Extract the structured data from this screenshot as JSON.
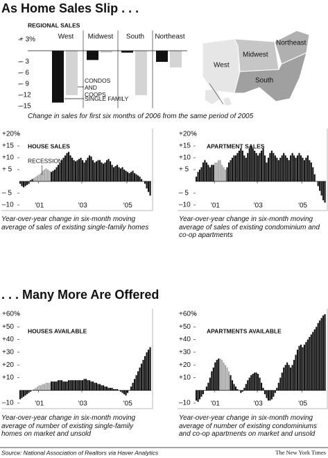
{
  "headline": "As Home Sales Slip . . .",
  "headline2": ". . . Many More Are Offered",
  "source": "Source: National Association of Realtors via Haver Analytics",
  "credit": "The New York Times",
  "chart_data": [
    {
      "type": "grouped_bar",
      "title": "REGIONAL SALES",
      "caption": "Change in sales for first six months of 2006 from the same period of 2005",
      "categories": [
        "West",
        "Midwest",
        "South",
        "Northeast"
      ],
      "series": [
        {
          "name": "SINGLE FAMILY",
          "color": "#111111",
          "values": [
            -14,
            -2.5,
            -0.5,
            -3
          ]
        },
        {
          "name": "CONDOS AND COOPS",
          "color": "#d4d4d4",
          "values": [
            -12,
            -0.5,
            -12,
            -4.5
          ]
        }
      ],
      "ylim": [
        -15.5,
        4
      ],
      "yticks": [
        {
          "value": 3,
          "label": "+ 3%"
        },
        {
          "value": -3,
          "label": "– 3"
        },
        {
          "value": -6,
          "label": "– 6"
        },
        {
          "value": -9,
          "label": "– 9"
        },
        {
          "value": -12,
          "label": "–12"
        },
        {
          "value": -15,
          "label": "–15"
        }
      ]
    },
    {
      "type": "bar",
      "title": "HOUSE SALES",
      "caption": "Year-over-year change in six-month moving average of sales of existing single-family homes",
      "color": "#111111",
      "highlight": {
        "label": "RECESSION",
        "from": 8,
        "to": 17,
        "color": "#aaaaaa"
      },
      "categories": [
        null,
        null,
        null,
        null,
        null,
        null,
        null,
        null,
        null,
        null,
        null,
        "'01",
        null,
        null,
        null,
        null,
        null,
        null,
        null,
        null,
        null,
        null,
        null,
        null,
        null,
        null,
        null,
        null,
        null,
        null,
        null,
        null,
        null,
        null,
        null,
        null,
        "'03",
        null,
        null,
        null,
        null,
        null,
        null,
        null,
        null,
        null,
        null,
        null,
        null,
        null,
        null,
        null,
        null,
        null,
        null,
        null,
        null,
        null,
        null,
        null,
        null,
        null,
        "'05",
        null,
        null,
        null,
        null,
        null,
        null,
        null,
        null,
        null,
        null,
        null,
        null,
        null
      ],
      "values": [
        -1,
        -2,
        -2.5,
        -2,
        -1.5,
        -1,
        0.5,
        1,
        1.5,
        2,
        2.5,
        3,
        3.5,
        4.5,
        5,
        5.5,
        5,
        4.5,
        4,
        4.5,
        5,
        6,
        7,
        8,
        9,
        10,
        11,
        12,
        12.5,
        11,
        10,
        9,
        8.5,
        9,
        9.5,
        10,
        9,
        8,
        9,
        10,
        11,
        10.5,
        9,
        8,
        8.5,
        9,
        9,
        8,
        7.5,
        8,
        9,
        9.5,
        8.5,
        7,
        6,
        6.5,
        7,
        6,
        5.5,
        6,
        5,
        4.5,
        4,
        3.5,
        4,
        4.5,
        3.5,
        3,
        2.5,
        2,
        1,
        0,
        -1,
        -3,
        -4.5,
        -6
      ],
      "ylim": [
        -10,
        20
      ],
      "yticks": [
        {
          "value": 20,
          "label": "+20%"
        },
        {
          "value": 15,
          "label": "+15"
        },
        {
          "value": 10,
          "label": "+10"
        },
        {
          "value": 5,
          "label": "+ 5"
        },
        {
          "value": -5,
          "label": "– 5"
        },
        {
          "value": -10,
          "label": "–10"
        }
      ]
    },
    {
      "type": "bar",
      "title": "APARTMENT SALES",
      "caption": "Year-over-year change in six-month moving average of sales of existing condominium and co-op apartments",
      "color": "#111111",
      "highlight": {
        "from": 11,
        "to": 17,
        "color": "#aaaaaa"
      },
      "categories": [
        null,
        null,
        null,
        null,
        null,
        null,
        null,
        null,
        null,
        null,
        null,
        "'01",
        null,
        null,
        null,
        null,
        null,
        null,
        null,
        null,
        null,
        null,
        null,
        null,
        null,
        null,
        null,
        null,
        null,
        null,
        null,
        null,
        null,
        null,
        null,
        null,
        "'03",
        null,
        null,
        null,
        null,
        null,
        null,
        null,
        null,
        null,
        null,
        null,
        null,
        null,
        null,
        null,
        null,
        null,
        null,
        null,
        null,
        null,
        null,
        null,
        null,
        null,
        "'05",
        null,
        null,
        null,
        null,
        null,
        null,
        null,
        null,
        null,
        null,
        null,
        null,
        null
      ],
      "values": [
        2,
        4,
        5,
        6,
        8,
        9,
        8,
        7,
        6,
        7,
        7,
        8,
        8,
        9,
        9,
        7,
        6,
        5,
        6,
        8,
        9,
        10,
        11,
        11,
        12,
        13,
        14,
        13,
        11,
        10,
        12,
        14,
        15,
        14,
        13,
        12,
        11,
        12,
        13,
        14,
        11,
        8,
        10,
        12,
        13,
        12,
        11,
        10,
        9,
        10,
        11,
        12,
        11,
        10,
        9,
        11,
        12,
        11,
        10,
        11,
        12,
        11,
        10,
        9,
        10,
        11,
        9,
        8,
        6,
        3,
        0,
        -2,
        -4,
        -6,
        -8,
        -9
      ],
      "ylim": [
        -10,
        20
      ],
      "yticks": [
        {
          "value": 20,
          "label": "+20%"
        },
        {
          "value": 15,
          "label": "+15"
        },
        {
          "value": 10,
          "label": "+10"
        },
        {
          "value": 5,
          "label": "+ 5"
        },
        {
          "value": -5,
          "label": "– 5"
        },
        {
          "value": -10,
          "label": "–10"
        }
      ]
    },
    {
      "type": "bar",
      "title": "HOUSES AVAILABLE",
      "caption": "Year-over-year change in six-month moving average of number of existing single-family homes on market and unsold",
      "color": "#111111",
      "highlight": {
        "from": 8,
        "to": 17,
        "color": "#aaaaaa"
      },
      "categories": [
        null,
        null,
        null,
        null,
        null,
        null,
        null,
        null,
        null,
        null,
        null,
        "'01",
        null,
        null,
        null,
        null,
        null,
        null,
        null,
        null,
        null,
        null,
        null,
        null,
        null,
        null,
        null,
        null,
        null,
        null,
        null,
        null,
        null,
        null,
        null,
        null,
        "'03",
        null,
        null,
        null,
        null,
        null,
        null,
        null,
        null,
        null,
        null,
        null,
        null,
        null,
        null,
        null,
        null,
        null,
        null,
        null,
        null,
        null,
        null,
        null,
        null,
        null,
        "'05",
        null,
        null,
        null,
        null,
        null,
        null,
        null,
        null,
        null,
        null,
        null,
        null,
        null
      ],
      "values": [
        -7,
        -6,
        -5,
        -4,
        -3,
        -2,
        -1,
        0,
        1,
        2,
        3,
        4,
        4,
        5,
        5,
        6,
        6,
        6,
        7,
        7,
        7,
        7,
        8,
        8,
        8,
        7,
        7,
        7,
        8,
        8,
        8,
        8,
        8,
        8,
        8,
        8,
        8,
        9,
        9,
        8,
        8,
        7,
        7,
        6,
        6,
        5,
        5,
        4,
        4,
        3,
        3,
        2,
        2,
        2,
        1,
        1,
        1,
        0,
        -1,
        -2,
        -3,
        -4,
        -2,
        0,
        3,
        6,
        9,
        12,
        15,
        18,
        21,
        24,
        27,
        30,
        32,
        34
      ],
      "ylim": [
        -10,
        60
      ],
      "yticks": [
        {
          "value": 60,
          "label": "+60%"
        },
        {
          "value": 50,
          "label": "+50"
        },
        {
          "value": 40,
          "label": "+40"
        },
        {
          "value": 30,
          "label": "+30"
        },
        {
          "value": 20,
          "label": "+20"
        },
        {
          "value": 10,
          "label": "+10"
        },
        {
          "value": -10,
          "label": "–10"
        }
      ]
    },
    {
      "type": "bar",
      "title": "APARTMENTS AVAILABLE",
      "caption": "Year-over-year change in six-month moving average of number of existing condominiums and co-op apartments on market and unsold",
      "color": "#111111",
      "highlight": {
        "from": 14,
        "to": 19,
        "color": "#aaaaaa"
      },
      "categories": [
        null,
        null,
        null,
        null,
        null,
        null,
        null,
        null,
        null,
        null,
        null,
        "'01",
        null,
        null,
        null,
        null,
        null,
        null,
        null,
        null,
        null,
        null,
        null,
        null,
        null,
        null,
        null,
        null,
        null,
        null,
        null,
        null,
        null,
        null,
        null,
        null,
        "'03",
        null,
        null,
        null,
        null,
        null,
        null,
        null,
        null,
        null,
        null,
        null,
        null,
        null,
        null,
        null,
        null,
        null,
        null,
        null,
        null,
        null,
        null,
        null,
        null,
        null,
        "'05",
        null,
        null,
        null,
        null,
        null,
        null,
        null,
        null,
        null,
        null,
        null,
        null,
        null
      ],
      "values": [
        -8,
        -9,
        -7,
        -5,
        -3,
        0,
        3,
        6,
        10,
        15,
        18,
        22,
        24,
        25,
        25,
        24,
        22,
        20,
        18,
        15,
        12,
        8,
        5,
        3,
        1,
        0,
        -2,
        -1,
        2,
        5,
        8,
        10,
        12,
        13,
        14,
        14,
        13,
        10,
        6,
        2,
        -3,
        -6,
        -8,
        -8,
        -7,
        -5,
        -2,
        2,
        6,
        10,
        14,
        18,
        20,
        22,
        20,
        18,
        20,
        24,
        28,
        32,
        35,
        36,
        34,
        36,
        38,
        40,
        42,
        44,
        46,
        48,
        50,
        53,
        55,
        57,
        59,
        60
      ],
      "ylim": [
        -10,
        60
      ],
      "yticks": [
        {
          "value": 60,
          "label": "+60%"
        },
        {
          "value": 50,
          "label": "+50"
        },
        {
          "value": 40,
          "label": "+40"
        },
        {
          "value": 30,
          "label": "+30"
        },
        {
          "value": 20,
          "label": "+20"
        },
        {
          "value": 10,
          "label": "+10"
        },
        {
          "value": -10,
          "label": "–10"
        }
      ]
    }
  ]
}
